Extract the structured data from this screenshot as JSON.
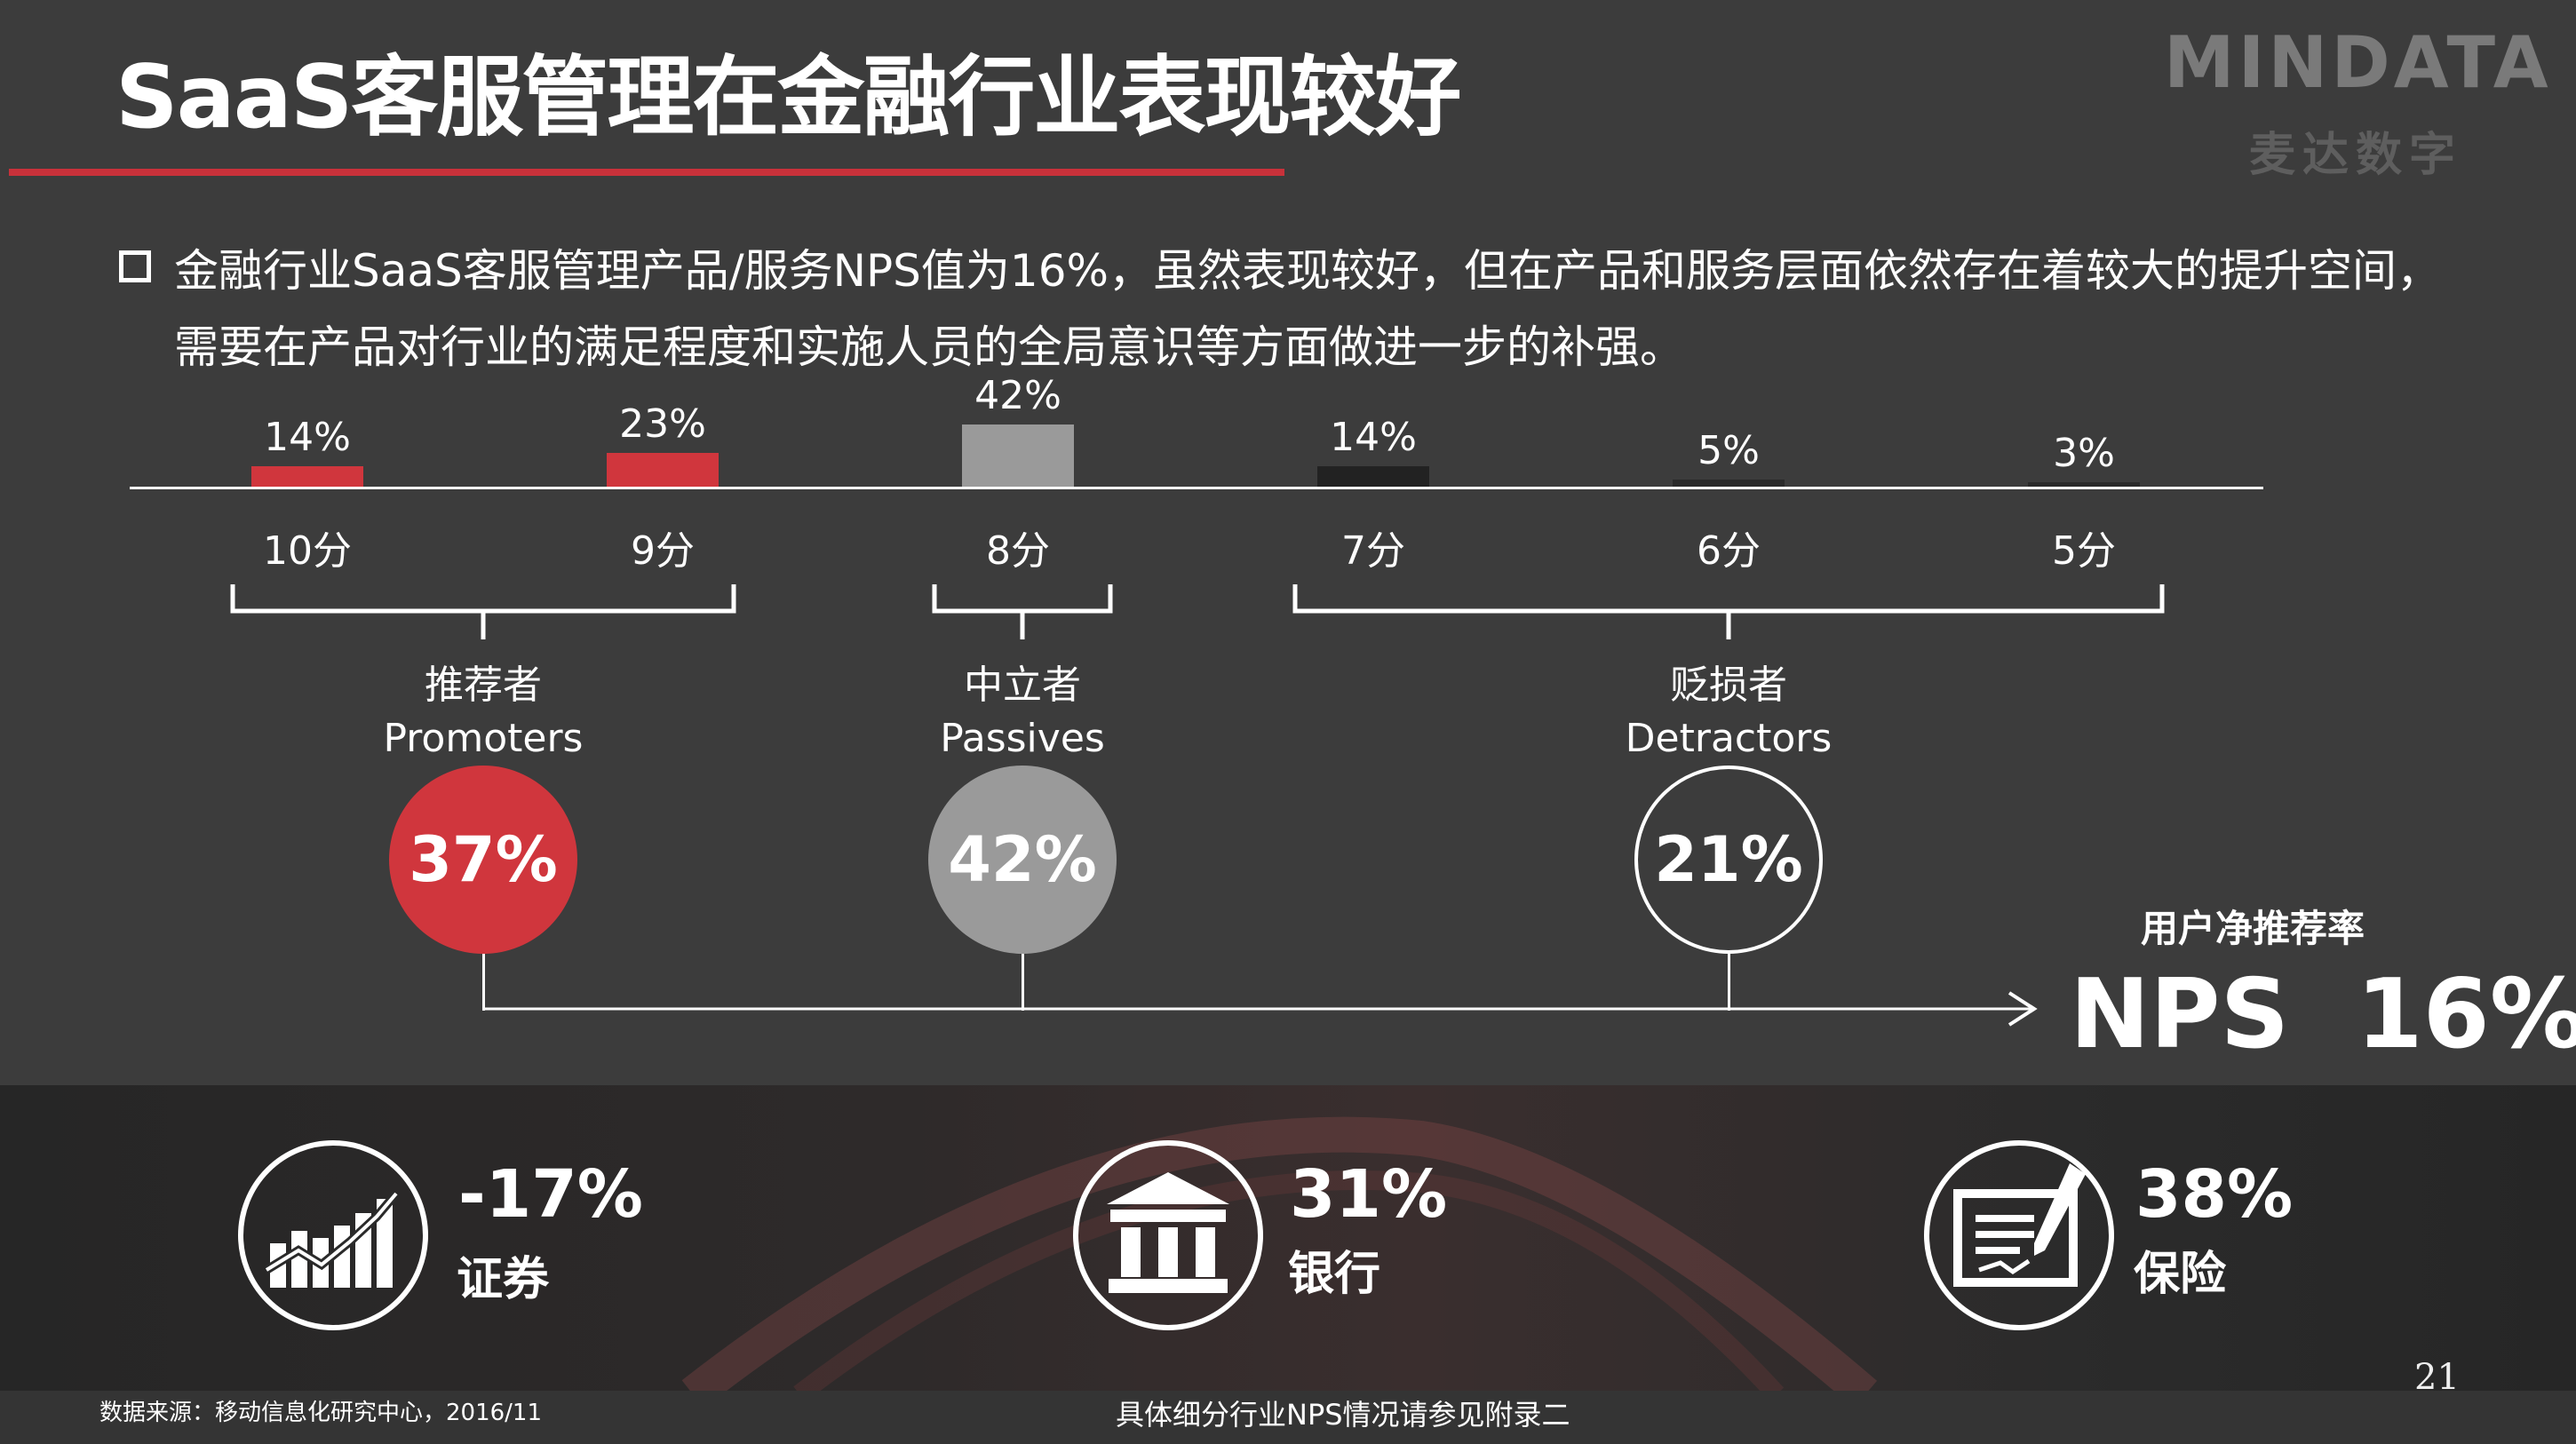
{
  "title": "SaaS客服管理在金融行业表现较好",
  "logo": {
    "text": "MINDATA",
    "subtitle": "麦达数字"
  },
  "description": "金融行业SaaS客服管理产品/服务NPS值为16%，虽然表现较好，但在产品和服务层面依然存在着较大的提升空间，需要在产品对行业的满足程度和实施人员的全局意识等方面做进一步的补强。",
  "chart_data": {
    "type": "bar",
    "categories": [
      "10分",
      "9分",
      "8分",
      "7分",
      "6分",
      "5分"
    ],
    "values": [
      14,
      23,
      42,
      14,
      5,
      3
    ],
    "value_labels": [
      "14%",
      "23%",
      "42%",
      "14%",
      "5%",
      "3%"
    ],
    "bar_colors": [
      "#d0363d",
      "#d0363d",
      "#9a9a9a",
      "#222222",
      "#2a2a2a",
      "#2a2a2a"
    ],
    "ylim": [
      0,
      42
    ]
  },
  "groups": [
    {
      "cn": "推荐者",
      "en": "Promoters",
      "value": "37%",
      "color": "#d0363d"
    },
    {
      "cn": "中立者",
      "en": "Passives",
      "value": "42%",
      "color": "#9a9a9a"
    },
    {
      "cn": "贬损者",
      "en": "Detractors",
      "value": "21%",
      "color": "transparent"
    }
  ],
  "nps": {
    "caption": "用户净推荐率",
    "value": "NPS  16%"
  },
  "sectors": [
    {
      "value": "-17%",
      "name": "证券",
      "icon": "stock-chart-icon"
    },
    {
      "value": "31%",
      "name": "银行",
      "icon": "bank-icon"
    },
    {
      "value": "38%",
      "name": "保险",
      "icon": "contract-pen-icon"
    }
  ],
  "footer": {
    "source": "数据来源：移动信息化研究中心，2016/11",
    "note": "具体细分行业NPS情况请参见附录二",
    "page": "21"
  }
}
